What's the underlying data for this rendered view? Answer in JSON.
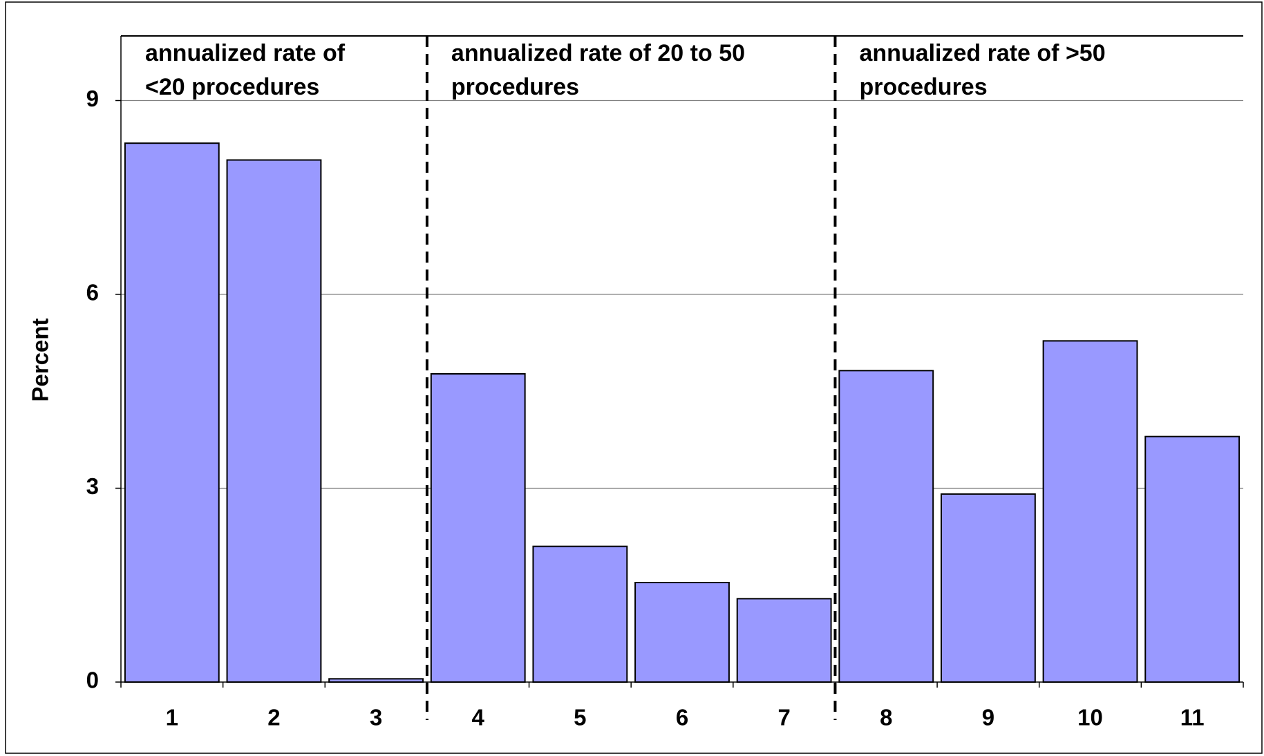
{
  "chart_data": {
    "type": "bar",
    "y_label": "Percent",
    "color": "#9999ff",
    "ylim": [
      0,
      10
    ],
    "yticks": [
      0,
      3,
      6,
      9
    ],
    "grid": true,
    "groups": [
      {
        "label": [
          "annualized rate of",
          "<20 procedures"
        ],
        "categories": [
          "1",
          "2",
          "3"
        ],
        "values": [
          8.34,
          8.08,
          0.05
        ]
      },
      {
        "label": [
          "annualized rate of 20 to 50",
          "procedures"
        ],
        "categories": [
          "4",
          "5",
          "6",
          "7"
        ],
        "values": [
          4.77,
          2.1,
          1.54,
          1.29
        ]
      },
      {
        "label": [
          "annualized rate of >50",
          "procedures"
        ],
        "categories": [
          "8",
          "9",
          "10",
          "11"
        ],
        "values": [
          4.82,
          2.91,
          5.28,
          3.8
        ]
      }
    ]
  }
}
